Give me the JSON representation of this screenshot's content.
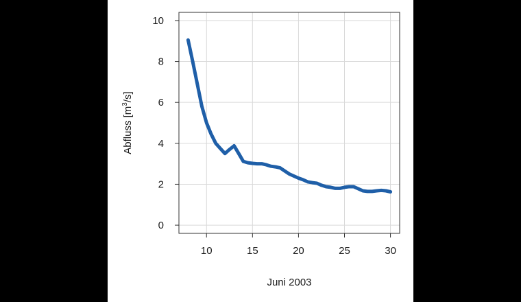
{
  "chart_data": {
    "type": "line",
    "title": "",
    "xlabel": "Juni 2003",
    "ylabel": "Abfluss [m³/s]",
    "ylabel_parts": {
      "prefix": "Abfluss [m",
      "superscript": "3",
      "suffix": "/s]"
    },
    "xlim": [
      7,
      31
    ],
    "ylim": [
      -0.4,
      10.4
    ],
    "x_ticks": [
      10,
      15,
      20,
      25,
      30
    ],
    "y_ticks": [
      0,
      2,
      4,
      6,
      8,
      10
    ],
    "grid": true,
    "legend": "none",
    "series": [
      {
        "name": "Abfluss",
        "color": "#1f5fa8",
        "x": [
          8.0,
          8.5,
          9.0,
          9.5,
          10.0,
          10.5,
          11.0,
          11.5,
          12.0,
          12.5,
          13.0,
          13.5,
          14.0,
          14.5,
          15.0,
          15.5,
          16.0,
          16.5,
          17.0,
          17.5,
          18.0,
          18.5,
          19.0,
          19.5,
          20.0,
          20.5,
          21.0,
          21.5,
          22.0,
          22.5,
          23.0,
          23.5,
          24.0,
          24.5,
          25.0,
          25.5,
          26.0,
          26.5,
          27.0,
          27.5,
          28.0,
          28.5,
          29.0,
          29.5,
          30.0
        ],
        "y": [
          9.05,
          8.0,
          6.9,
          5.8,
          5.0,
          4.45,
          4.0,
          3.75,
          3.5,
          3.7,
          3.88,
          3.5,
          3.12,
          3.05,
          3.02,
          3.0,
          3.0,
          2.95,
          2.88,
          2.85,
          2.8,
          2.65,
          2.5,
          2.4,
          2.3,
          2.22,
          2.12,
          2.08,
          2.05,
          1.95,
          1.88,
          1.85,
          1.8,
          1.8,
          1.85,
          1.88,
          1.88,
          1.78,
          1.68,
          1.65,
          1.65,
          1.68,
          1.7,
          1.68,
          1.63
        ]
      }
    ]
  }
}
